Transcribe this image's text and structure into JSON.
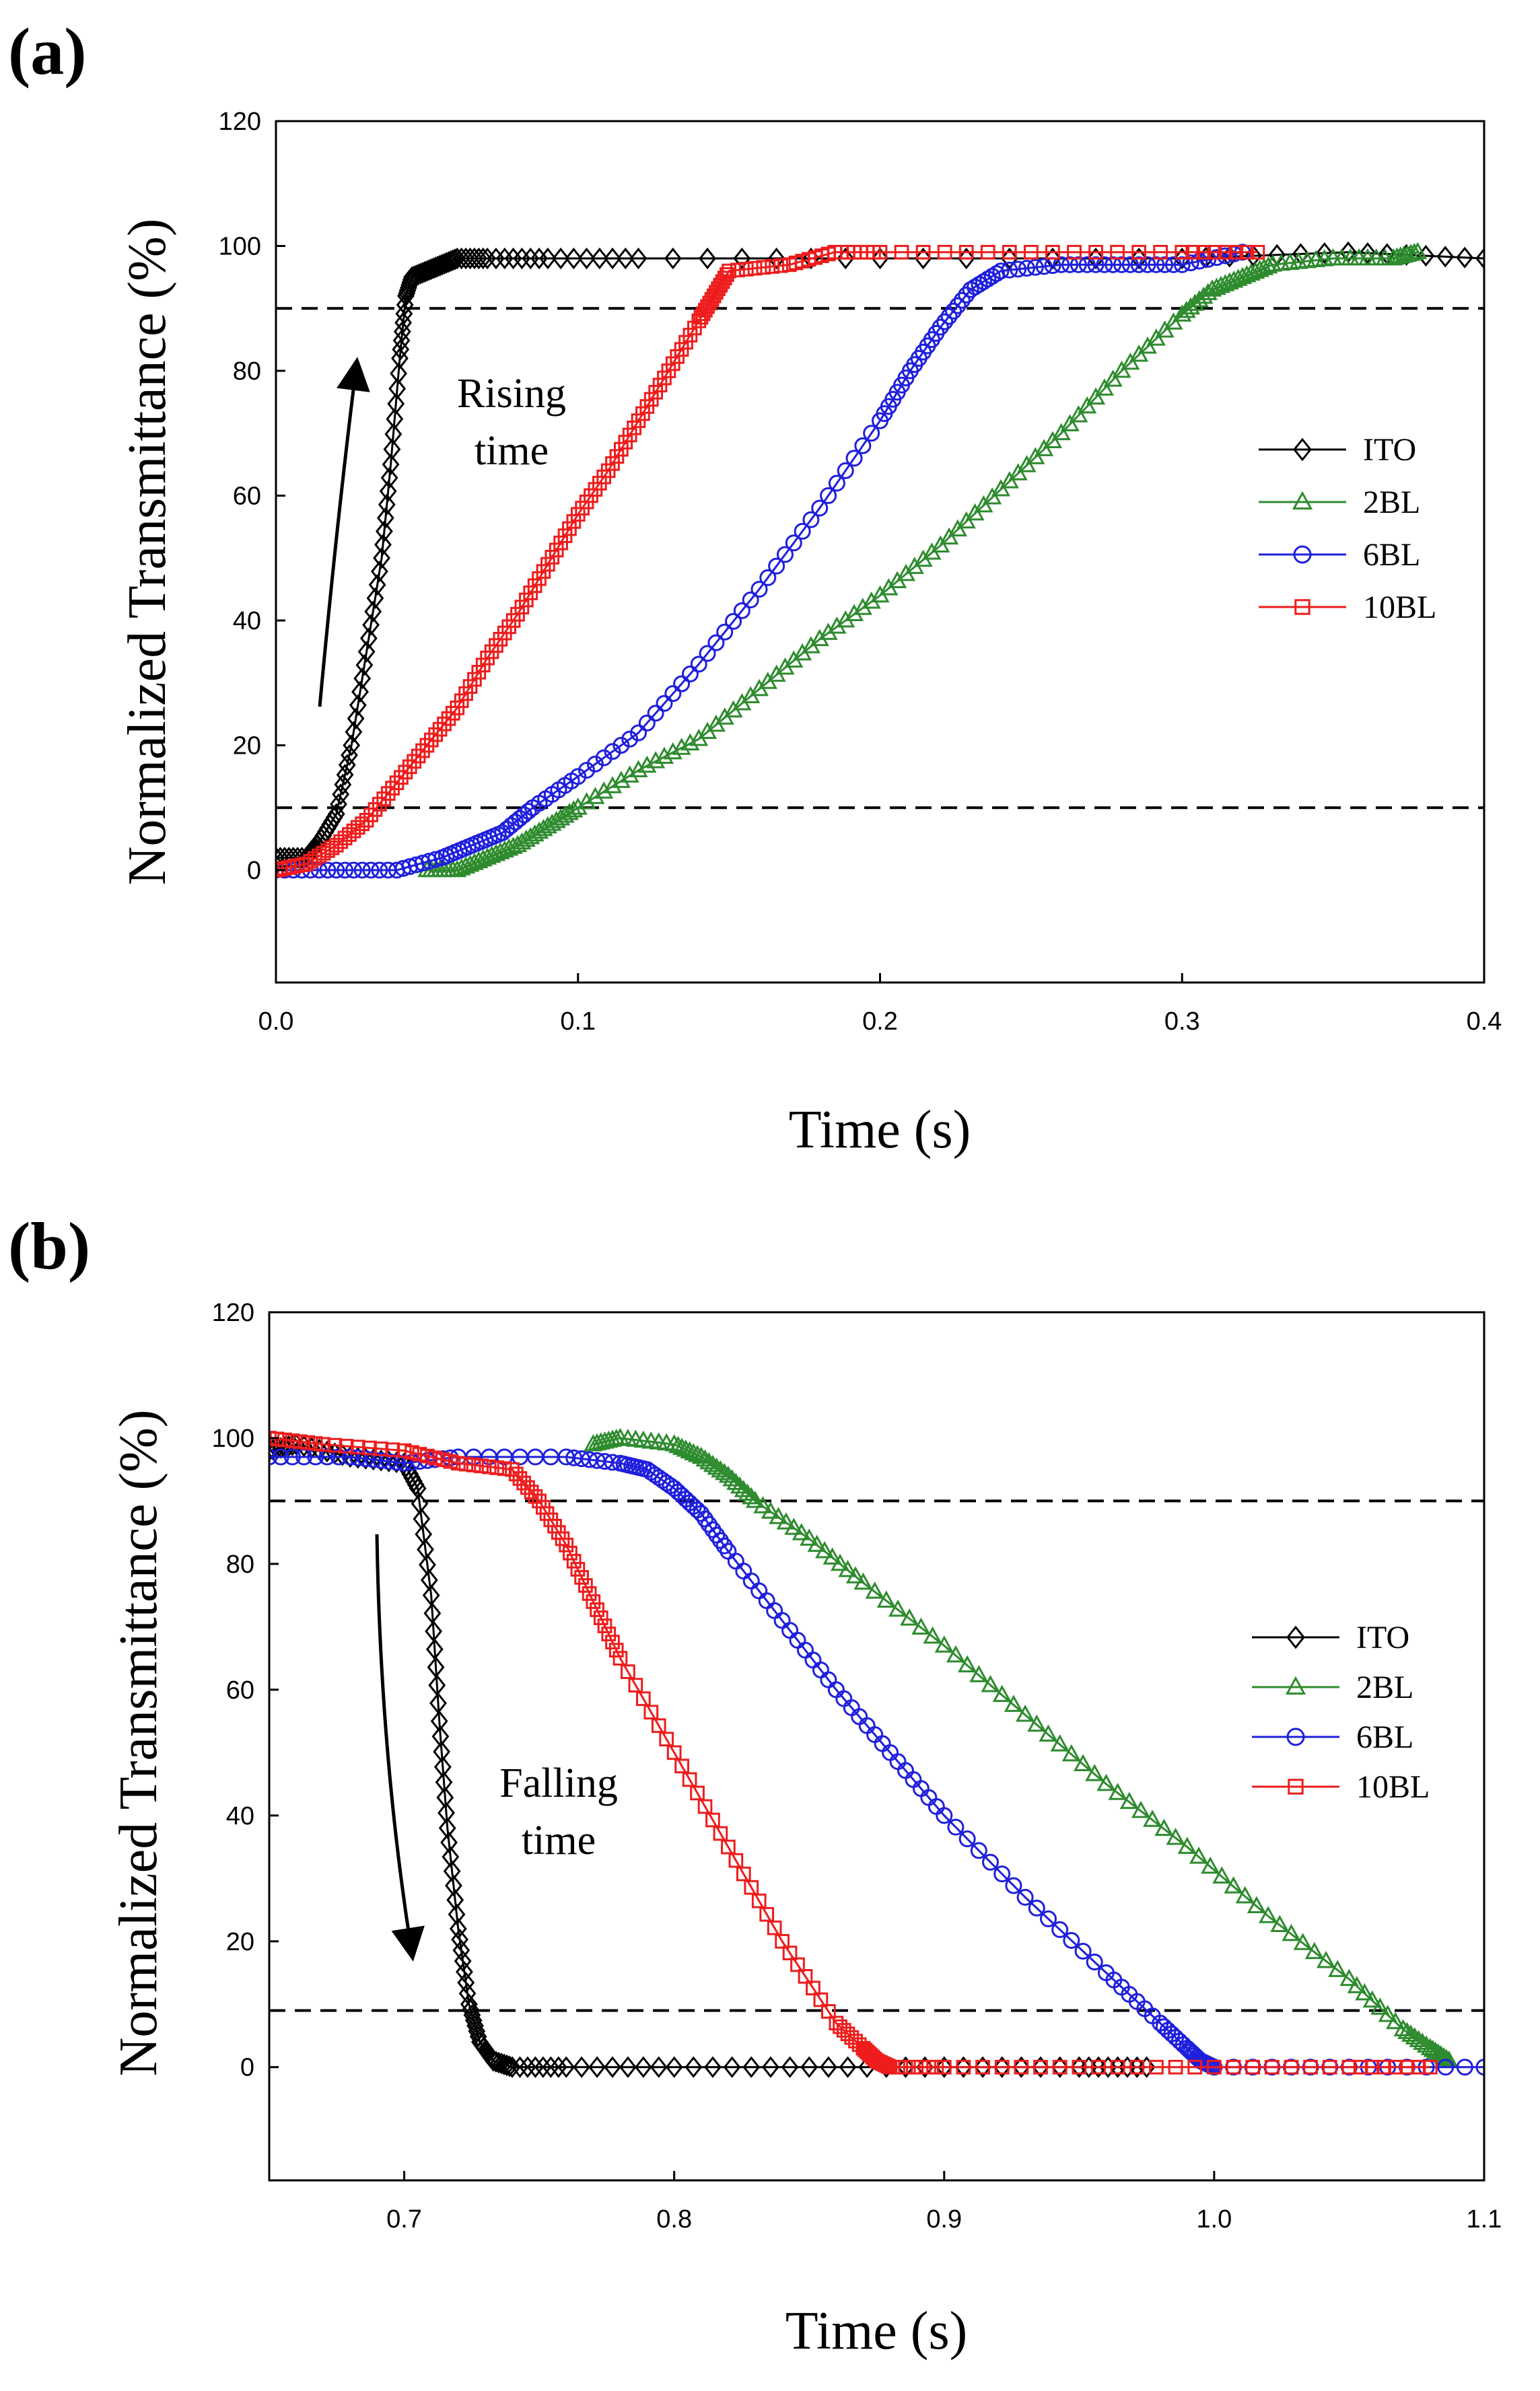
{
  "chart_data": [
    {
      "type": "line",
      "panel_label": "(a)",
      "xlabel": "Time (s)",
      "ylabel": "Normalized Transmittance (%)",
      "xlim": [
        0.0,
        0.4
      ],
      "ylim": [
        -18,
        120
      ],
      "xticks": [
        "0.0",
        "0.1",
        "0.2",
        "0.3",
        "0.4"
      ],
      "xtick_values": [
        0.0,
        0.1,
        0.2,
        0.3,
        0.4
      ],
      "yticks": [
        "0",
        "20",
        "40",
        "60",
        "80",
        "100",
        "120"
      ],
      "ytick_values": [
        0,
        20,
        40,
        60,
        80,
        100,
        120
      ],
      "reference_lines": [
        10,
        90
      ],
      "annotation": [
        "Rising",
        "time"
      ],
      "arrow": "up",
      "legend_position": "center-right",
      "series": [
        {
          "name": "ITO",
          "color": "#000000",
          "marker": "diamond",
          "x": [
            0.0,
            0.01,
            0.015,
            0.02,
            0.025,
            0.03,
            0.035,
            0.038,
            0.041,
            0.043,
            0.045,
            0.05,
            0.055,
            0.06,
            0.07,
            0.09,
            0.12,
            0.2,
            0.3,
            0.355,
            0.4
          ],
          "y": [
            2,
            2,
            5,
            9,
            20,
            35,
            50,
            65,
            82,
            92,
            95,
            96,
            97,
            98,
            98,
            98,
            98,
            98,
            98,
            99,
            98
          ]
        },
        {
          "name": "2BL",
          "color": "#2e8b2e",
          "marker": "triangle",
          "x": [
            0.05,
            0.06,
            0.07,
            0.08,
            0.09,
            0.1,
            0.12,
            0.14,
            0.16,
            0.18,
            0.2,
            0.22,
            0.24,
            0.26,
            0.28,
            0.3,
            0.31,
            0.32,
            0.33,
            0.35,
            0.37,
            0.378
          ],
          "y": [
            0,
            0,
            2,
            4,
            7,
            10,
            16,
            21,
            29,
            37,
            44,
            52,
            61,
            70,
            80,
            89,
            93,
            95,
            97,
            98,
            98,
            99
          ]
        },
        {
          "name": "6BL",
          "color": "#1f1fdd",
          "marker": "circle",
          "x": [
            0.0,
            0.02,
            0.04,
            0.055,
            0.065,
            0.075,
            0.085,
            0.1,
            0.12,
            0.14,
            0.16,
            0.18,
            0.2,
            0.21,
            0.22,
            0.23,
            0.24,
            0.26,
            0.28,
            0.3,
            0.32
          ],
          "y": [
            0,
            0,
            0,
            2,
            4,
            6,
            10,
            15,
            22,
            33,
            45,
            58,
            72,
            80,
            87,
            93,
            96,
            97,
            97,
            97,
            99
          ]
        },
        {
          "name": "10BL",
          "color": "#ee1c1c",
          "marker": "square",
          "x": [
            0.0,
            0.01,
            0.02,
            0.03,
            0.04,
            0.05,
            0.06,
            0.07,
            0.08,
            0.09,
            0.1,
            0.11,
            0.12,
            0.13,
            0.14,
            0.145,
            0.15,
            0.17,
            0.185,
            0.2,
            0.25,
            0.3,
            0.325
          ],
          "y": [
            0,
            1,
            4,
            8,
            14,
            20,
            26,
            34,
            41,
            49,
            57,
            64,
            72,
            80,
            88,
            92,
            96,
            97,
            99,
            99,
            99,
            99,
            99
          ]
        }
      ]
    },
    {
      "type": "line",
      "panel_label": "(b)",
      "xlabel": "Time (s)",
      "ylabel": "Normalized Transmittance (%)",
      "xlim": [
        0.65,
        1.1
      ],
      "ylim": [
        -18,
        120
      ],
      "xticks": [
        "0.7",
        "0.8",
        "0.9",
        "1.0",
        "1.1"
      ],
      "xtick_values": [
        0.7,
        0.8,
        0.9,
        1.0,
        1.1
      ],
      "yticks": [
        "0",
        "20",
        "40",
        "60",
        "80",
        "100",
        "120"
      ],
      "ytick_values": [
        0,
        20,
        40,
        60,
        80,
        100,
        120
      ],
      "reference_lines": [
        9,
        90
      ],
      "annotation": [
        "Falling",
        "time"
      ],
      "arrow": "down",
      "legend_position": "center-right",
      "series": [
        {
          "name": "ITO",
          "color": "#000000",
          "marker": "diamond",
          "x": [
            0.65,
            0.66,
            0.68,
            0.7,
            0.705,
            0.71,
            0.713,
            0.716,
            0.72,
            0.724,
            0.728,
            0.733,
            0.74,
            0.76,
            0.8,
            0.85,
            0.9,
            0.95,
            0.975
          ],
          "y": [
            98,
            99,
            97,
            96,
            92,
            75,
            55,
            38,
            22,
            10,
            4,
            1,
            0,
            0,
            0,
            0,
            0,
            0,
            0
          ]
        },
        {
          "name": "2BL",
          "color": "#2e8b2e",
          "marker": "triangle",
          "x": [
            0.77,
            0.78,
            0.8,
            0.81,
            0.82,
            0.83,
            0.85,
            0.87,
            0.9,
            0.93,
            0.96,
            0.99,
            1.02,
            1.05,
            1.07,
            1.08,
            1.087
          ],
          "y": [
            99,
            100,
            99,
            97,
            94,
            90,
            84,
            77,
            67,
            56,
            45,
            35,
            24,
            14,
            6,
            3,
            1
          ]
        },
        {
          "name": "6BL",
          "color": "#1f1fdd",
          "marker": "circle",
          "x": [
            0.65,
            0.68,
            0.7,
            0.72,
            0.76,
            0.78,
            0.79,
            0.8,
            0.81,
            0.82,
            0.84,
            0.86,
            0.88,
            0.9,
            0.93,
            0.96,
            0.98,
            0.99,
            0.995,
            1.0,
            1.05,
            1.1
          ],
          "y": [
            97,
            97,
            96,
            97,
            97,
            96,
            95,
            92,
            88,
            82,
            71,
            60,
            50,
            40,
            27,
            15,
            7,
            3,
            1,
            0,
            0,
            0
          ]
        },
        {
          "name": "10BL",
          "color": "#ee1c1c",
          "marker": "square",
          "x": [
            0.65,
            0.67,
            0.7,
            0.72,
            0.74,
            0.75,
            0.76,
            0.77,
            0.78,
            0.8,
            0.82,
            0.84,
            0.86,
            0.87,
            0.875,
            0.88,
            0.9,
            0.95,
            1.0,
            1.05,
            1.08
          ],
          "y": [
            100,
            99,
            98,
            96,
            95,
            90,
            83,
            74,
            65,
            50,
            35,
            20,
            7,
            3,
            1,
            0,
            0,
            0,
            0,
            0,
            0
          ]
        }
      ]
    }
  ]
}
